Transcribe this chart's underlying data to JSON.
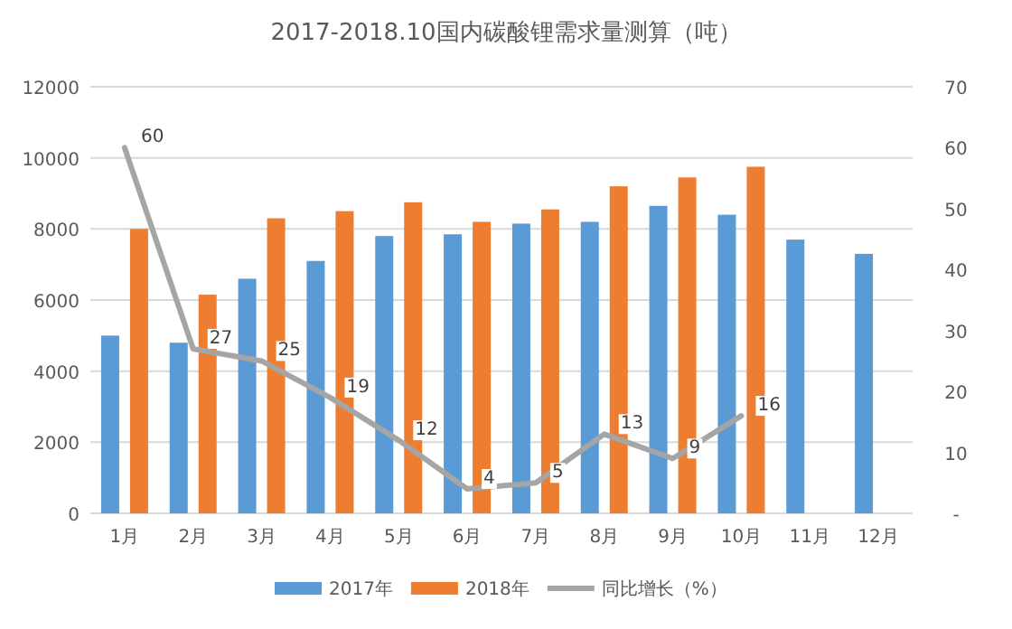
{
  "chart_data": {
    "type": "bar",
    "title": "2017-2018.10国内碳酸锂需求量测算（吨）",
    "categories": [
      "1月",
      "2月",
      "3月",
      "4月",
      "5月",
      "6月",
      "7月",
      "8月",
      "9月",
      "10月",
      "11月",
      "12月"
    ],
    "series": [
      {
        "name": "2017年",
        "color": "#5b9bd5",
        "values": [
          5000,
          4800,
          6600,
          7100,
          7800,
          7850,
          8150,
          8200,
          8650,
          8400,
          7700,
          7300
        ]
      },
      {
        "name": "2018年",
        "color": "#ed7d31",
        "values": [
          8000,
          6150,
          8300,
          8500,
          8750,
          8200,
          8550,
          9200,
          9450,
          9750,
          null,
          null
        ]
      },
      {
        "name": "同比增长（%）",
        "type": "line",
        "axis": "y2",
        "color": "#a5a5a5",
        "values": [
          60,
          27,
          25,
          19,
          12,
          4,
          5,
          13,
          9,
          16,
          null,
          null
        ],
        "value_labels": [
          "60",
          "27",
          "25",
          "19",
          "12",
          "4",
          "5",
          "13",
          "9",
          "16",
          null,
          null
        ]
      }
    ],
    "ylim": [
      0,
      12000
    ],
    "yticks": [
      0,
      2000,
      4000,
      6000,
      8000,
      10000,
      12000
    ],
    "y2lim": [
      0,
      70
    ],
    "y2ticks": [
      {
        "value": 0,
        "label": "-"
      },
      10,
      20,
      30,
      40,
      50,
      60,
      70
    ],
    "grid": "y",
    "legend": "bottom"
  }
}
